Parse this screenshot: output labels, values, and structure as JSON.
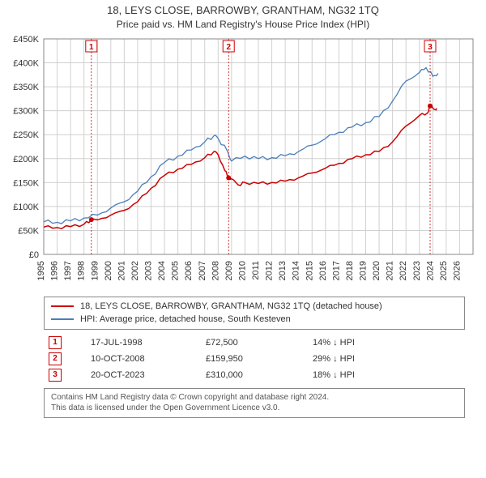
{
  "title_main": "18, LEYS CLOSE, BARROWBY, GRANTHAM, NG32 1TQ",
  "title_sub": "Price paid vs. HM Land Registry's House Price Index (HPI)",
  "chart": {
    "type": "line",
    "plot_bg": "#ffffff",
    "grid_color": "#d0d0d0",
    "border_color": "#888888",
    "x": {
      "min": 1995,
      "max": 2027,
      "ticks": [
        1995,
        1996,
        1997,
        1998,
        1999,
        2000,
        2001,
        2002,
        2003,
        2004,
        2005,
        2006,
        2007,
        2008,
        2009,
        2010,
        2011,
        2012,
        2013,
        2014,
        2015,
        2016,
        2017,
        2018,
        2019,
        2020,
        2021,
        2022,
        2023,
        2024,
        2025,
        2026
      ]
    },
    "y": {
      "min": 0,
      "max": 450000,
      "ticks": [
        0,
        50000,
        100000,
        150000,
        200000,
        250000,
        300000,
        350000,
        400000,
        450000
      ],
      "tick_labels": [
        "£0",
        "£50K",
        "£100K",
        "£150K",
        "£200K",
        "£250K",
        "£300K",
        "£350K",
        "£400K",
        "£450K"
      ]
    },
    "series": [
      {
        "id": "property",
        "label": "18, LEYS CLOSE, BARROWBY, GRANTHAM, NG32 1TQ (detached house)",
        "color": "#cc0000",
        "line_width": 1.5,
        "points": [
          [
            1995.0,
            57000
          ],
          [
            1996.0,
            56000
          ],
          [
            1997.0,
            58000
          ],
          [
            1998.0,
            63000
          ],
          [
            1998.55,
            72500
          ],
          [
            1999.0,
            72000
          ],
          [
            2000.0,
            82000
          ],
          [
            2001.0,
            92000
          ],
          [
            2002.0,
            110000
          ],
          [
            2003.0,
            138000
          ],
          [
            2004.0,
            165000
          ],
          [
            2005.0,
            178000
          ],
          [
            2006.0,
            188000
          ],
          [
            2007.0,
            202000
          ],
          [
            2007.7,
            215000
          ],
          [
            2008.0,
            208000
          ],
          [
            2008.5,
            175000
          ],
          [
            2008.78,
            159950
          ],
          [
            2009.0,
            158000
          ],
          [
            2009.5,
            145000
          ],
          [
            2010.0,
            150000
          ],
          [
            2011.0,
            148000
          ],
          [
            2012.0,
            150000
          ],
          [
            2013.0,
            153000
          ],
          [
            2014.0,
            160000
          ],
          [
            2015.0,
            170000
          ],
          [
            2016.0,
            180000
          ],
          [
            2017.0,
            190000
          ],
          [
            2018.0,
            200000
          ],
          [
            2019.0,
            208000
          ],
          [
            2020.0,
            215000
          ],
          [
            2021.0,
            235000
          ],
          [
            2022.0,
            268000
          ],
          [
            2023.0,
            290000
          ],
          [
            2023.6,
            295000
          ],
          [
            2023.8,
            310000
          ],
          [
            2024.1,
            303000
          ],
          [
            2024.3,
            305000
          ]
        ]
      },
      {
        "id": "hpi",
        "label": "HPI: Average price, detached house, South Kesteven",
        "color": "#4a7ebb",
        "line_width": 1.3,
        "points": [
          [
            1995.0,
            68000
          ],
          [
            1996.0,
            67000
          ],
          [
            1997.0,
            70000
          ],
          [
            1998.0,
            76000
          ],
          [
            1999.0,
            82000
          ],
          [
            2000.0,
            97000
          ],
          [
            2001.0,
            110000
          ],
          [
            2002.0,
            132000
          ],
          [
            2003.0,
            162000
          ],
          [
            2004.0,
            192000
          ],
          [
            2005.0,
            205000
          ],
          [
            2006.0,
            218000
          ],
          [
            2007.0,
            235000
          ],
          [
            2007.7,
            248000
          ],
          [
            2008.0,
            242000
          ],
          [
            2008.7,
            215000
          ],
          [
            2009.0,
            195000
          ],
          [
            2010.0,
            205000
          ],
          [
            2011.0,
            200000
          ],
          [
            2012.0,
            202000
          ],
          [
            2013.0,
            206000
          ],
          [
            2014.0,
            215000
          ],
          [
            2015.0,
            228000
          ],
          [
            2016.0,
            242000
          ],
          [
            2017.0,
            255000
          ],
          [
            2018.0,
            266000
          ],
          [
            2019.0,
            275000
          ],
          [
            2020.0,
            288000
          ],
          [
            2021.0,
            320000
          ],
          [
            2022.0,
            362000
          ],
          [
            2023.0,
            380000
          ],
          [
            2023.5,
            390000
          ],
          [
            2024.0,
            372000
          ],
          [
            2024.4,
            378000
          ]
        ]
      }
    ],
    "markers": [
      {
        "n": "1",
        "x": 1998.55,
        "y": 72500
      },
      {
        "n": "2",
        "x": 2008.78,
        "y": 159950
      },
      {
        "n": "3",
        "x": 2023.8,
        "y": 310000
      }
    ]
  },
  "legend": {
    "items": [
      {
        "color": "#cc0000",
        "text": "18, LEYS CLOSE, BARROWBY, GRANTHAM, NG32 1TQ (detached house)"
      },
      {
        "color": "#4a7ebb",
        "text": "HPI: Average price, detached house, South Kesteven"
      }
    ]
  },
  "events": [
    {
      "n": "1",
      "date": "17-JUL-1998",
      "price": "£72,500",
      "delta": "14% ↓ HPI"
    },
    {
      "n": "2",
      "date": "10-OCT-2008",
      "price": "£159,950",
      "delta": "29% ↓ HPI"
    },
    {
      "n": "3",
      "date": "20-OCT-2023",
      "price": "£310,000",
      "delta": "18% ↓ HPI"
    }
  ],
  "footnote_l1": "Contains HM Land Registry data © Crown copyright and database right 2024.",
  "footnote_l2": "This data is licensed under the Open Government Licence v3.0."
}
